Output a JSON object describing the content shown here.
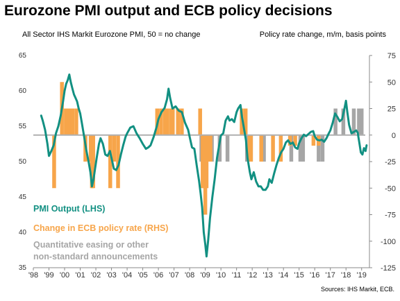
{
  "title": "Eurozone PMI output and ECB policy decisions",
  "subtitle_left": "All Sector IHS Markit Eurozone PMI, 50 = no change",
  "subtitle_right": "Policy rate change, m/m, basis points",
  "source": "Sources: IHS Markit, ECB.",
  "colors": {
    "pmi": "#129082",
    "rate": "#f7a54a",
    "qe": "#a6a6a6",
    "zero": "#b0b0b0"
  },
  "chart_data": {
    "type": "line+bar",
    "title": "Eurozone PMI output and ECB policy decisions",
    "left_axis": {
      "label": "All Sector IHS Markit Eurozone PMI, 50 = no change",
      "ylim": [
        35,
        65
      ],
      "ticks": [
        35,
        40,
        45,
        50,
        55,
        60,
        65
      ]
    },
    "right_axis": {
      "label": "Policy rate change, m/m, basis points",
      "ylim": [
        -125,
        75
      ],
      "ticks": [
        -125,
        -100,
        -75,
        -50,
        -25,
        0,
        25,
        50,
        75
      ]
    },
    "x_axis": {
      "range": [
        1998,
        2019.5
      ],
      "tick_labels": [
        "'98",
        "'99",
        "'00",
        "'01",
        "'02",
        "'03",
        "'04",
        "'05",
        "'06",
        "'07",
        "'08",
        "'09",
        "'10",
        "'11",
        "'12",
        "'13",
        "'14",
        "'15",
        "'16",
        "'17",
        "'18",
        "'19"
      ]
    },
    "legend": [
      {
        "name": "PMI  Output (LHS)",
        "color": "#129082"
      },
      {
        "name": "Change in ECB policy rate (RHS)",
        "color": "#f7a54a"
      },
      {
        "name": "Quantitative easing or other",
        "color": "#a6a6a6"
      },
      {
        "name": "non-standard announcements",
        "color": "#a6a6a6"
      }
    ],
    "series": [
      {
        "name": "PMI  Output (LHS)",
        "axis": "left",
        "points": [
          [
            1998.5,
            56.5
          ],
          [
            1998.6,
            55.8
          ],
          [
            1998.75,
            54.5
          ],
          [
            1998.9,
            52.5
          ],
          [
            1999.0,
            50.8
          ],
          [
            1999.15,
            51.5
          ],
          [
            1999.3,
            52.3
          ],
          [
            1999.45,
            54.0
          ],
          [
            1999.6,
            55.0
          ],
          [
            1999.75,
            56.5
          ],
          [
            1999.9,
            58.5
          ],
          [
            2000.0,
            60.0
          ],
          [
            2000.1,
            61.0
          ],
          [
            2000.2,
            61.5
          ],
          [
            2000.3,
            62.3
          ],
          [
            2000.4,
            61.2
          ],
          [
            2000.5,
            60.3
          ],
          [
            2000.6,
            59.5
          ],
          [
            2000.7,
            59.0
          ],
          [
            2000.8,
            58.5
          ],
          [
            2000.9,
            57.5
          ],
          [
            2001.0,
            56.8
          ],
          [
            2001.1,
            55.5
          ],
          [
            2001.25,
            53.5
          ],
          [
            2001.4,
            51.5
          ],
          [
            2001.55,
            49.8
          ],
          [
            2001.65,
            48.5
          ],
          [
            2001.75,
            46.5
          ],
          [
            2001.85,
            47.5
          ],
          [
            2001.95,
            49.0
          ],
          [
            2002.05,
            50.5
          ],
          [
            2002.2,
            52.5
          ],
          [
            2002.3,
            53.3
          ],
          [
            2002.45,
            52.5
          ],
          [
            2002.6,
            51.0
          ],
          [
            2002.75,
            50.8
          ],
          [
            2002.9,
            51.5
          ],
          [
            2003.0,
            50.5
          ],
          [
            2003.15,
            49.0
          ],
          [
            2003.3,
            48.8
          ],
          [
            2003.45,
            49.5
          ],
          [
            2003.6,
            51.0
          ],
          [
            2003.75,
            52.3
          ],
          [
            2003.9,
            53.5
          ],
          [
            2004.0,
            54.0
          ],
          [
            2004.2,
            54.8
          ],
          [
            2004.4,
            55.0
          ],
          [
            2004.6,
            54.0
          ],
          [
            2004.8,
            53.3
          ],
          [
            2005.0,
            52.5
          ],
          [
            2005.2,
            51.8
          ],
          [
            2005.35,
            52.0
          ],
          [
            2005.5,
            52.3
          ],
          [
            2005.7,
            53.5
          ],
          [
            2005.9,
            55.0
          ],
          [
            2006.0,
            56.0
          ],
          [
            2006.2,
            57.0
          ],
          [
            2006.4,
            57.6
          ],
          [
            2006.55,
            58.8
          ],
          [
            2006.65,
            60.3
          ],
          [
            2006.75,
            59.0
          ],
          [
            2006.9,
            57.5
          ],
          [
            2007.1,
            57.8
          ],
          [
            2007.3,
            57.2
          ],
          [
            2007.5,
            57.0
          ],
          [
            2007.7,
            55.5
          ],
          [
            2007.9,
            54.5
          ],
          [
            2008.0,
            53.5
          ],
          [
            2008.15,
            52.0
          ],
          [
            2008.3,
            51.8
          ],
          [
            2008.45,
            49.5
          ],
          [
            2008.6,
            47.3
          ],
          [
            2008.7,
            45.5
          ],
          [
            2008.8,
            43.5
          ],
          [
            2008.9,
            40.0
          ],
          [
            2009.0,
            38.3
          ],
          [
            2009.08,
            36.6
          ],
          [
            2009.18,
            38.8
          ],
          [
            2009.3,
            42.0
          ],
          [
            2009.45,
            45.0
          ],
          [
            2009.6,
            47.5
          ],
          [
            2009.75,
            50.5
          ],
          [
            2009.9,
            52.5
          ],
          [
            2010.0,
            53.7
          ],
          [
            2010.15,
            54.0
          ],
          [
            2010.3,
            55.8
          ],
          [
            2010.45,
            56.4
          ],
          [
            2010.55,
            55.8
          ],
          [
            2010.7,
            56.0
          ],
          [
            2010.85,
            55.6
          ],
          [
            2011.0,
            57.0
          ],
          [
            2011.1,
            57.5
          ],
          [
            2011.25,
            58.0
          ],
          [
            2011.35,
            56.3
          ],
          [
            2011.45,
            55.0
          ],
          [
            2011.6,
            53.0
          ],
          [
            2011.7,
            50.5
          ],
          [
            2011.85,
            48.5
          ],
          [
            2011.95,
            47.5
          ],
          [
            2012.1,
            48.5
          ],
          [
            2012.25,
            47.2
          ],
          [
            2012.4,
            46.5
          ],
          [
            2012.55,
            46.5
          ],
          [
            2012.7,
            46.0
          ],
          [
            2012.85,
            46.0
          ],
          [
            2013.0,
            46.5
          ],
          [
            2013.1,
            47.5
          ],
          [
            2013.25,
            47.0
          ],
          [
            2013.4,
            48.3
          ],
          [
            2013.55,
            49.5
          ],
          [
            2013.7,
            50.5
          ],
          [
            2013.85,
            51.3
          ],
          [
            2014.0,
            51.8
          ],
          [
            2014.15,
            52.7
          ],
          [
            2014.3,
            53.0
          ],
          [
            2014.45,
            52.5
          ],
          [
            2014.6,
            52.7
          ],
          [
            2014.75,
            52.0
          ],
          [
            2014.9,
            51.8
          ],
          [
            2015.0,
            52.6
          ],
          [
            2015.15,
            53.3
          ],
          [
            2015.3,
            53.8
          ],
          [
            2015.45,
            53.6
          ],
          [
            2015.6,
            53.9
          ],
          [
            2015.75,
            54.2
          ],
          [
            2015.9,
            54.3
          ],
          [
            2016.0,
            53.6
          ],
          [
            2016.15,
            53.1
          ],
          [
            2016.3,
            53.0
          ],
          [
            2016.45,
            53.1
          ],
          [
            2016.6,
            52.8
          ],
          [
            2016.75,
            53.3
          ],
          [
            2016.9,
            54.0
          ],
          [
            2017.0,
            54.4
          ],
          [
            2017.15,
            55.5
          ],
          [
            2017.3,
            56.8
          ],
          [
            2017.45,
            56.3
          ],
          [
            2017.6,
            55.7
          ],
          [
            2017.75,
            56.0
          ],
          [
            2017.9,
            57.5
          ],
          [
            2018.0,
            58.6
          ],
          [
            2018.08,
            57.1
          ],
          [
            2018.2,
            55.2
          ],
          [
            2018.35,
            54.0
          ],
          [
            2018.5,
            54.2
          ],
          [
            2018.65,
            54.4
          ],
          [
            2018.75,
            54.1
          ],
          [
            2018.85,
            52.7
          ],
          [
            2018.95,
            51.3
          ],
          [
            2019.05,
            51.0
          ],
          [
            2019.15,
            51.9
          ],
          [
            2019.25,
            51.5
          ],
          [
            2019.32,
            52.3
          ]
        ]
      },
      {
        "name": "Change in ECB policy rate (RHS)",
        "axis": "right",
        "bars": [
          [
            1999.33,
            -50
          ],
          [
            1999.83,
            50
          ],
          [
            2000.08,
            25
          ],
          [
            2000.25,
            25
          ],
          [
            2000.33,
            25
          ],
          [
            2000.5,
            25
          ],
          [
            2000.75,
            25
          ],
          [
            2001.33,
            -25
          ],
          [
            2001.67,
            -25
          ],
          [
            2001.75,
            -50
          ],
          [
            2001.83,
            -50
          ],
          [
            2002.92,
            -50
          ],
          [
            2003.17,
            -25
          ],
          [
            2003.42,
            -50
          ],
          [
            2005.92,
            25
          ],
          [
            2006.17,
            25
          ],
          [
            2006.42,
            25
          ],
          [
            2006.58,
            25
          ],
          [
            2006.83,
            25
          ],
          [
            2006.92,
            25
          ],
          [
            2007.25,
            25
          ],
          [
            2007.5,
            25
          ],
          [
            2008.67,
            25
          ],
          [
            2008.83,
            -50
          ],
          [
            2008.92,
            -50
          ],
          [
            2009.0,
            -75
          ],
          [
            2009.08,
            -50
          ],
          [
            2009.17,
            -25
          ],
          [
            2009.33,
            -25
          ],
          [
            2011.33,
            25
          ],
          [
            2011.58,
            25
          ],
          [
            2011.83,
            -25
          ],
          [
            2011.92,
            -25
          ],
          [
            2012.58,
            -25
          ],
          [
            2013.33,
            -25
          ],
          [
            2013.83,
            -25
          ],
          [
            2014.42,
            -10
          ],
          [
            2014.75,
            -10
          ],
          [
            2015.92,
            -10
          ],
          [
            2016.25,
            -10
          ]
        ]
      },
      {
        "name": "Quantitative easing or other non-standard announcements",
        "axis": "right",
        "bars": [
          [
            2008.75,
            -25
          ],
          [
            2009.42,
            -25
          ],
          [
            2009.92,
            -25
          ],
          [
            2010.42,
            -25
          ],
          [
            2011.67,
            -25
          ],
          [
            2011.92,
            -25
          ],
          [
            2012.58,
            -25
          ],
          [
            2012.75,
            -25
          ],
          [
            2014.5,
            -25
          ],
          [
            2015.08,
            -25
          ],
          [
            2015.25,
            -25
          ],
          [
            2016.25,
            -25
          ],
          [
            2016.5,
            -25
          ],
          [
            2017.33,
            25
          ],
          [
            2017.83,
            25
          ],
          [
            2018.5,
            25
          ],
          [
            2018.83,
            25
          ],
          [
            2019.0,
            25
          ]
        ]
      }
    ]
  }
}
